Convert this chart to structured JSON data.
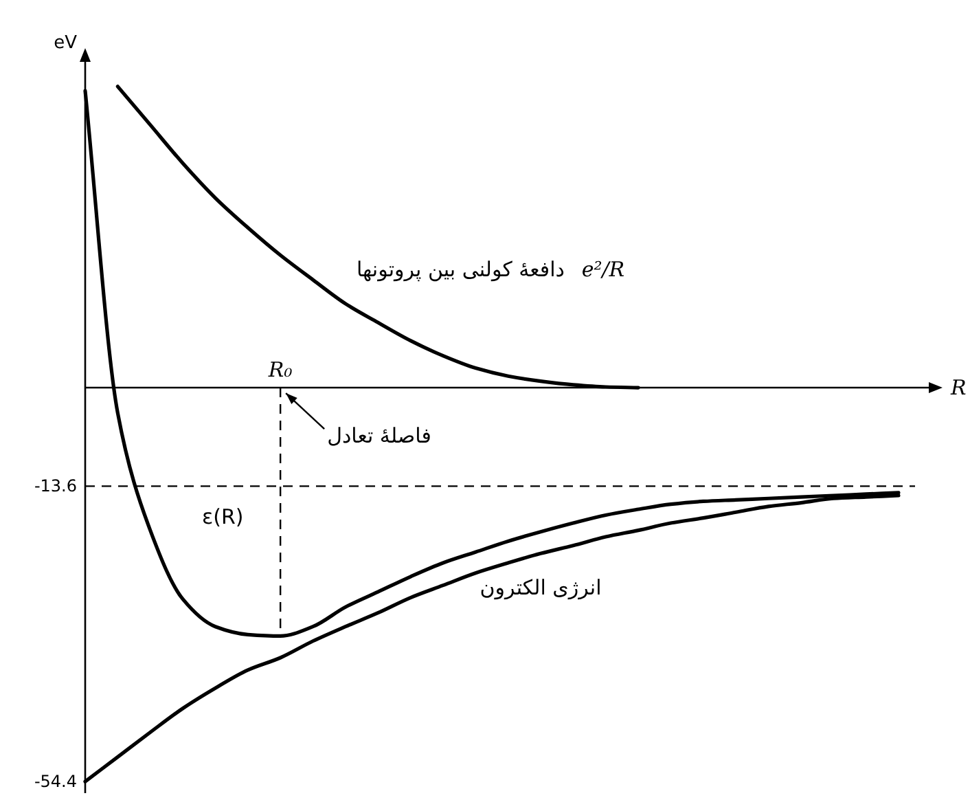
{
  "chart_data": {
    "type": "line",
    "xlabel": "R",
    "ylabel": "eV",
    "categories": [
      null,
      null,
      null,
      null,
      null,
      null,
      "R₀",
      null,
      null,
      null,
      null,
      null,
      null,
      null,
      null,
      null,
      null,
      null,
      null,
      null,
      null,
      null,
      null,
      null,
      null,
      null
    ],
    "series": [
      {
        "name": "دافعهٔ کولنی بین پروتونها",
        "color": "#000000",
        "values": [
          null,
          41.6,
          36.3,
          31.0,
          26.2,
          22.1,
          18.3,
          14.9,
          11.6,
          9.0,
          6.5,
          4.4,
          2.7,
          1.6,
          0.9,
          0.4,
          0.1,
          0,
          null,
          null,
          null,
          null,
          null,
          null,
          null,
          null
        ]
      },
      {
        "name": "ε(R)",
        "color": "#000000",
        "values": [
          41.0,
          -3.5,
          -19.7,
          -29.2,
          -33.0,
          -34.1,
          -34.3,
          -33.0,
          -30.3,
          -28.2,
          -26.1,
          -24.2,
          -22.7,
          -21.2,
          -19.9,
          -18.7,
          -17.6,
          -16.8,
          -16.1,
          -15.7,
          -15.5,
          -15.3,
          -15.1,
          -14.9,
          -14.7,
          -14.5
        ]
      },
      {
        "name": "انرژی الکترون",
        "color": "#000000",
        "values": [
          -54.4,
          -51.0,
          -47.6,
          -44.3,
          -41.5,
          -39.0,
          -37.3,
          -35.0,
          -33.0,
          -31.1,
          -29.0,
          -27.3,
          -25.6,
          -24.2,
          -22.9,
          -21.8,
          -20.6,
          -19.7,
          -18.7,
          -18.0,
          -17.2,
          -16.4,
          -15.9,
          -15.3,
          -15.1,
          -14.9
        ]
      }
    ],
    "ylim": [
      -56,
      45
    ],
    "yticks": [
      -13.6,
      -54.4
    ],
    "ref_lines": [
      {
        "axis": "y",
        "value": -13.6,
        "line_style": "dashed"
      },
      {
        "axis": "x",
        "value": "R₀",
        "line_style": "dashed"
      }
    ],
    "annotations": [
      "e²/R",
      {
        "text": "فاصلهٔ تعادل",
        "x": "R₀",
        "y": 0
      }
    ]
  }
}
